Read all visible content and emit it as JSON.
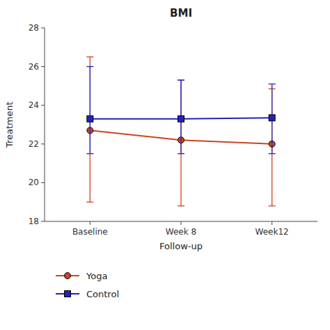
{
  "chart_data": {
    "type": "line",
    "title": "BMI",
    "xlabel": "Follow-up",
    "ylabel": "Treatment",
    "categories": [
      "Baseline",
      "Week 8",
      "Week12"
    ],
    "ylim": [
      18,
      28
    ],
    "yticks": [
      18,
      20,
      22,
      24,
      26,
      28
    ],
    "grid": false,
    "series": [
      {
        "name": "Yoga",
        "color": "#cc4422",
        "marker": "circle",
        "values": [
          22.7,
          22.2,
          22.0
        ],
        "error_low": [
          3.7,
          3.4,
          3.2
        ],
        "error_high": [
          3.8,
          3.1,
          2.85
        ]
      },
      {
        "name": "Control",
        "color": "#2222bb",
        "marker": "square",
        "values": [
          23.3,
          23.3,
          23.35
        ],
        "error_low": [
          1.8,
          1.8,
          1.85
        ],
        "error_high": [
          2.7,
          2.0,
          1.75
        ]
      }
    ]
  }
}
